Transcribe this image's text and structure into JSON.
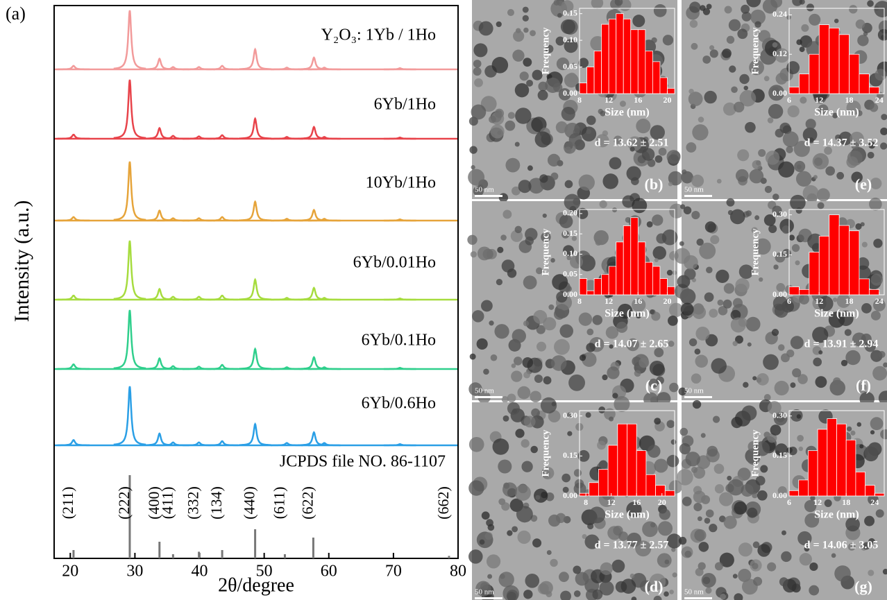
{
  "chart_data": [
    {
      "type": "xrd",
      "panel_label": "(a)",
      "x_label": "2θ/degree",
      "y_label": "Intensity (a.u.)",
      "xlim": [
        17.5,
        80
      ],
      "xticks": [
        20,
        30,
        40,
        50,
        60,
        70,
        80
      ],
      "peaks_x": [
        20.5,
        29.2,
        33.8,
        35.9,
        39.9,
        43.5,
        48.6,
        53.5,
        57.7,
        59.3,
        71
      ],
      "series": [
        {
          "name": "Y₂O₃: 1Yb / 1Ho",
          "color": "#f29a9a",
          "values": [
            6,
            100,
            18,
            4,
            4,
            6,
            34,
            3,
            20,
            3,
            2
          ]
        },
        {
          "name": "6Yb/1Ho",
          "color": "#e8434a",
          "values": [
            7,
            100,
            18,
            5,
            4,
            6,
            34,
            3,
            20,
            3,
            2
          ]
        },
        {
          "name": "10Yb/1Ho",
          "color": "#e6a43a",
          "values": [
            6,
            100,
            17,
            4,
            4,
            6,
            32,
            3,
            18,
            3,
            2
          ]
        },
        {
          "name": "6Yb/0.01Ho",
          "color": "#a6dc3e",
          "values": [
            7,
            100,
            18,
            5,
            5,
            7,
            34,
            3,
            20,
            3,
            2
          ]
        },
        {
          "name": "6Yb/0.1Ho",
          "color": "#2fcf8c",
          "values": [
            8,
            100,
            18,
            5,
            4,
            7,
            34,
            3,
            20,
            3,
            2
          ]
        },
        {
          "name": "6Yb/0.6Ho",
          "color": "#2a9fe6",
          "values": [
            9,
            100,
            20,
            5,
            5,
            7,
            36,
            4,
            22,
            4,
            2
          ]
        }
      ],
      "reference": {
        "name": "JCPDS file NO. 86-1107",
        "color": "#777777",
        "x": [
          20.5,
          29.2,
          33.8,
          35.9,
          39.9,
          43.5,
          48.6,
          53.2,
          57.6,
          78.6
        ],
        "values": [
          10,
          100,
          20,
          5,
          8,
          10,
          35,
          5,
          25,
          3
        ],
        "hkl": [
          "(211)",
          "(222)",
          "(400)",
          "(411)",
          "(332)",
          "(134)",
          "(440)",
          "(611)",
          "(622)",
          "(662)"
        ]
      }
    },
    {
      "type": "histogram",
      "panel_label": "(b)",
      "annotation": "d = 13.62 ± 2.51",
      "scale_bar": "50 nm",
      "x_label": "Size (nm)",
      "y_label": "Frequency",
      "color": "#ff0000",
      "bins": [
        8,
        9,
        10,
        11,
        12,
        13,
        14,
        15,
        16,
        17,
        18,
        19,
        20,
        21
      ],
      "values": [
        0.02,
        0.05,
        0.08,
        0.13,
        0.14,
        0.15,
        0.14,
        0.12,
        0.12,
        0.08,
        0.06,
        0.03,
        0.01
      ],
      "xlim": [
        8,
        21
      ],
      "ylim": [
        0,
        0.16
      ],
      "xticks": [
        8,
        12,
        16,
        20
      ],
      "yticks": [
        {
          "value": 0,
          "label": "0.00"
        },
        0.05,
        {
          "value": 0.1,
          "label": "0.10"
        },
        0.15
      ]
    },
    {
      "type": "histogram",
      "panel_label": "(e)",
      "annotation": "d = 14.37 ± 3.52",
      "scale_bar": "50 nm",
      "x_label": "Size (nm)",
      "y_label": "Frequency",
      "color": "#ff0000",
      "bins": [
        6,
        8,
        10,
        12,
        14,
        16,
        18,
        20,
        22,
        24
      ],
      "values": [
        0.02,
        0.06,
        0.12,
        0.21,
        0.2,
        0.18,
        0.12,
        0.06,
        0.02
      ],
      "xlim": [
        6,
        25
      ],
      "ylim": [
        0,
        0.26
      ],
      "xticks": [
        6,
        12,
        18,
        24
      ],
      "yticks": [
        {
          "value": 0,
          "label": "0.00"
        },
        0.12,
        0.24
      ]
    },
    {
      "type": "histogram",
      "panel_label": "(c)",
      "annotation": "d = 14.07 ± 2.65",
      "scale_bar": "50 nm",
      "x_label": "Size (nm)",
      "y_label": "Frequency",
      "color": "#ff0000",
      "bins": [
        8,
        9,
        10,
        11,
        12,
        13,
        14,
        15,
        16,
        17,
        18,
        19,
        20,
        21
      ],
      "values": [
        0.04,
        0.01,
        0.04,
        0.05,
        0.07,
        0.13,
        0.17,
        0.19,
        0.13,
        0.08,
        0.07,
        0.04,
        0.02
      ],
      "xlim": [
        8,
        21
      ],
      "ylim": [
        0,
        0.21
      ],
      "xticks": [
        8,
        12,
        16,
        20
      ],
      "yticks": [
        {
          "value": 0,
          "label": "0.00"
        },
        0.05,
        {
          "value": 0.1,
          "label": "0.10"
        },
        0.15,
        {
          "value": 0.2,
          "label": "0.20"
        }
      ]
    },
    {
      "type": "histogram",
      "panel_label": "(f)",
      "annotation": "d = 13.91 ± 2.94",
      "scale_bar": "50 nm",
      "x_label": "Size (nm)",
      "y_label": "Frequency",
      "color": "#ff0000",
      "bins": [
        6,
        8,
        10,
        12,
        14,
        16,
        18,
        20,
        22,
        24
      ],
      "values": [
        0.03,
        0.02,
        0.16,
        0.22,
        0.3,
        0.26,
        0.24,
        0.06,
        0.02
      ],
      "xlim": [
        6,
        25
      ],
      "ylim": [
        0,
        0.32
      ],
      "xticks": [
        6,
        12,
        18,
        24
      ],
      "yticks": [
        {
          "value": 0,
          "label": "0.00"
        },
        0.15,
        {
          "value": 0.3,
          "label": "0.30"
        }
      ]
    },
    {
      "type": "histogram",
      "panel_label": "(d)",
      "annotation": "d = 13.77 ± 2.57",
      "scale_bar": "50 nm",
      "x_label": "Size (nm)",
      "y_label": "Frequency",
      "color": "#ff0000",
      "bins": [
        7,
        8.5,
        10,
        11.5,
        13,
        14.5,
        16,
        17.5,
        19,
        20.5,
        22
      ],
      "values": [
        0.01,
        0.05,
        0.1,
        0.19,
        0.27,
        0.27,
        0.17,
        0.08,
        0.04,
        0.02
      ],
      "xlim": [
        7,
        22
      ],
      "ylim": [
        0,
        0.32
      ],
      "xticks": [
        8,
        12,
        16,
        20
      ],
      "yticks": [
        {
          "value": 0,
          "label": "0.00"
        },
        0.15,
        {
          "value": 0.3,
          "label": "0.30"
        }
      ]
    },
    {
      "type": "histogram",
      "panel_label": "(g)",
      "annotation": "d = 14.06 ± 3.05",
      "scale_bar": "50 nm",
      "x_label": "Size (nm)",
      "y_label": "Frequency",
      "color": "#ff0000",
      "bins": [
        6,
        8,
        10,
        12,
        14,
        16,
        18,
        20,
        22,
        24,
        26
      ],
      "values": [
        0.02,
        0.06,
        0.17,
        0.25,
        0.29,
        0.27,
        0.21,
        0.09,
        0.04,
        0.01
      ],
      "xlim": [
        6,
        26
      ],
      "ylim": [
        0,
        0.32
      ],
      "xticks": [
        6,
        12,
        18,
        24
      ],
      "yticks": [
        {
          "value": 0,
          "label": "0.00"
        },
        0.15,
        {
          "value": 0.3,
          "label": "0.30"
        }
      ]
    }
  ]
}
